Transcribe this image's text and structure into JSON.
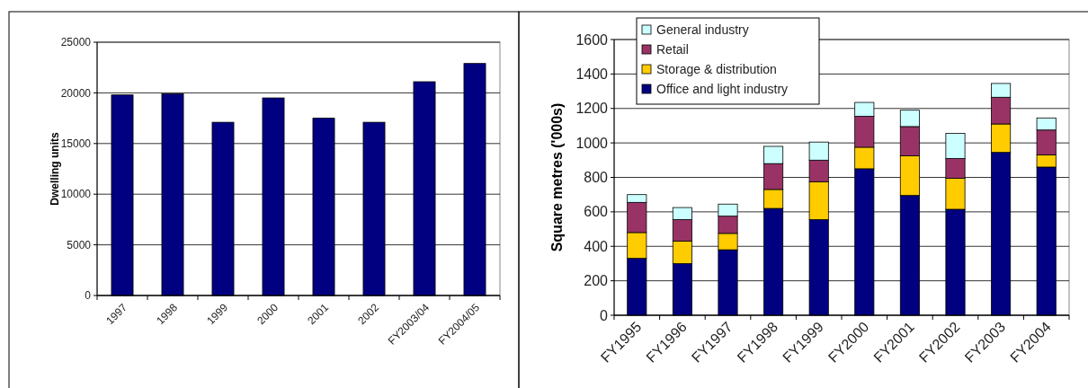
{
  "chart_data": [
    {
      "type": "bar",
      "ylabel": "Dwelling units",
      "categories": [
        "1997",
        "1998",
        "1999",
        "2000",
        "2001",
        "2002",
        "FY2003/04",
        "FY2004/05"
      ],
      "values": [
        19800,
        19900,
        17100,
        19500,
        17500,
        17100,
        21100,
        22900
      ],
      "color": "#000080",
      "ylim": [
        0,
        25000
      ],
      "yticks": [
        0,
        5000,
        10000,
        15000,
        20000,
        25000
      ],
      "grid": "y"
    },
    {
      "type": "bar",
      "stacked": true,
      "ylabel": "Square metres ('000s)",
      "categories": [
        "FY1995",
        "FY1996",
        "FY1997",
        "FY1998",
        "FY1999",
        "FY2000",
        "FY2001",
        "FY2002",
        "FY2003",
        "FY2004"
      ],
      "series": [
        {
          "name": "Office and light industry",
          "color": "#000080",
          "values": [
            330,
            300,
            380,
            620,
            555,
            850,
            695,
            615,
            945,
            860
          ]
        },
        {
          "name": "Storage & distribution",
          "color": "#ffcc00",
          "values": [
            150,
            130,
            95,
            110,
            220,
            125,
            230,
            180,
            165,
            70
          ]
        },
        {
          "name": "Retail",
          "color": "#993366",
          "values": [
            175,
            125,
            100,
            150,
            125,
            180,
            170,
            115,
            155,
            145
          ]
        },
        {
          "name": "General industry",
          "color": "#ccffff",
          "values": [
            45,
            70,
            70,
            100,
            105,
            80,
            95,
            145,
            80,
            70
          ]
        }
      ],
      "ylim": [
        0,
        1600
      ],
      "yticks": [
        0,
        200,
        400,
        600,
        800,
        1000,
        1200,
        1400,
        1600
      ],
      "grid": "y",
      "legend": "top left"
    }
  ]
}
